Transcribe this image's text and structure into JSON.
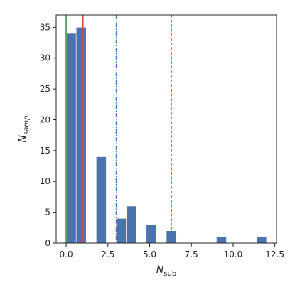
{
  "chart_data": {
    "type": "bar",
    "title": "",
    "xlabel": "N",
    "xlabel_sub": "sub",
    "ylabel": "N",
    "ylabel_sub": "samp",
    "xlim": [
      -0.6,
      12.6
    ],
    "ylim": [
      0,
      37
    ],
    "xticks": [
      0.0,
      2.5,
      5.0,
      7.5,
      10.0,
      12.5
    ],
    "xtick_labels": [
      "0.0",
      "2.5",
      "5.0",
      "7.5",
      "10.0",
      "12.5"
    ],
    "yticks": [
      0,
      5,
      10,
      15,
      20,
      25,
      30,
      35
    ],
    "ytick_labels": [
      "0",
      "5",
      "10",
      "15",
      "20",
      "25",
      "30",
      "35"
    ],
    "grid": false,
    "bar_color": "#4c72b0",
    "bins": [
      {
        "x0": 0.0,
        "x1": 0.6,
        "value": 34
      },
      {
        "x0": 0.6,
        "x1": 1.2,
        "value": 35
      },
      {
        "x0": 1.2,
        "x1": 1.8,
        "value": 0
      },
      {
        "x0": 1.8,
        "x1": 2.4,
        "value": 14
      },
      {
        "x0": 2.4,
        "x1": 3.0,
        "value": 0
      },
      {
        "x0": 3.0,
        "x1": 3.6,
        "value": 4
      },
      {
        "x0": 3.6,
        "x1": 4.2,
        "value": 6
      },
      {
        "x0": 4.2,
        "x1": 4.8,
        "value": 0
      },
      {
        "x0": 4.8,
        "x1": 5.4,
        "value": 3
      },
      {
        "x0": 5.4,
        "x1": 6.0,
        "value": 0
      },
      {
        "x0": 6.0,
        "x1": 6.6,
        "value": 2
      },
      {
        "x0": 6.6,
        "x1": 7.2,
        "value": 0
      },
      {
        "x0": 7.2,
        "x1": 7.8,
        "value": 0
      },
      {
        "x0": 7.8,
        "x1": 8.4,
        "value": 0
      },
      {
        "x0": 8.4,
        "x1": 9.0,
        "value": 0
      },
      {
        "x0": 9.0,
        "x1": 9.6,
        "value": 1
      },
      {
        "x0": 9.6,
        "x1": 10.2,
        "value": 0
      },
      {
        "x0": 10.2,
        "x1": 10.8,
        "value": 0
      },
      {
        "x0": 10.8,
        "x1": 11.4,
        "value": 0
      },
      {
        "x0": 11.4,
        "x1": 12.0,
        "value": 1
      }
    ],
    "vlines": [
      {
        "x": 0.0,
        "color": "#55a868",
        "style": "solid"
      },
      {
        "x": 1.0,
        "color": "#c44e52",
        "style": "solid"
      },
      {
        "x": 3.0,
        "color": "#4c72b0",
        "style": "dashdot"
      },
      {
        "x": 6.3,
        "color": "#4c72b0",
        "style": "dashed"
      }
    ]
  }
}
